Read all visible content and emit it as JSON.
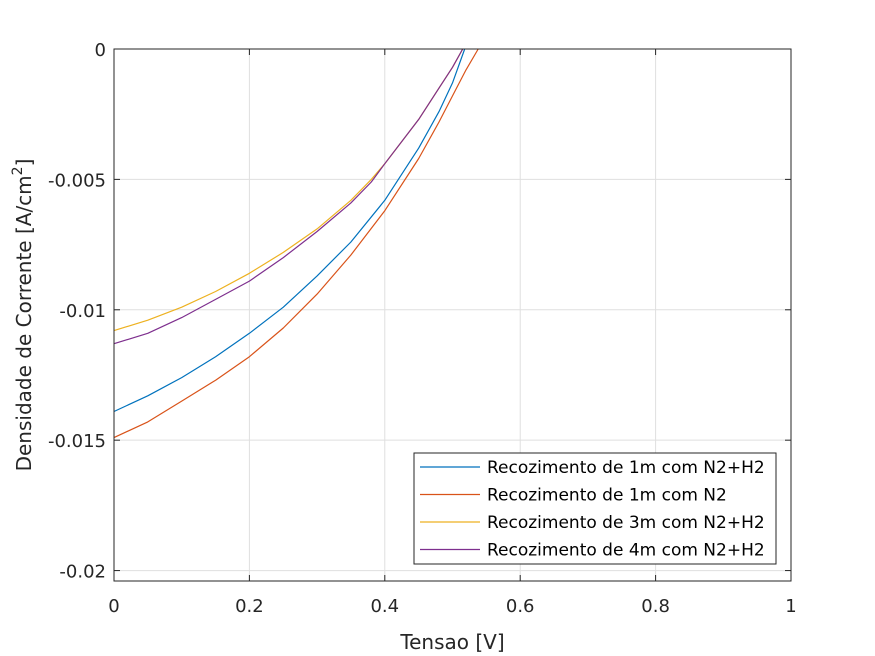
{
  "chart_data": {
    "type": "line",
    "title": "",
    "xlabel": "Tensao [V]",
    "ylabel_main": "Densidade de Corrente [A/cm",
    "ylabel_sup": "2",
    "ylabel_end": "]",
    "xlim": [
      0,
      1
    ],
    "ylim": [
      -0.0204,
      0
    ],
    "xticks": [
      0,
      0.2,
      0.4,
      0.6,
      0.8,
      1
    ],
    "xtick_labels": [
      "0",
      "0.2",
      "0.4",
      "0.6",
      "0.8",
      "1"
    ],
    "yticks": [
      0,
      -0.005,
      -0.01,
      -0.015,
      -0.02
    ],
    "ytick_labels": [
      "0",
      "-0.005",
      "-0.01",
      "-0.015",
      "-0.02"
    ],
    "grid": true,
    "legend_position": "bottom-right",
    "series": [
      {
        "name": "Recozimento de 1m com N2+H2",
        "color": "#0072BD",
        "x": [
          0,
          0.05,
          0.1,
          0.15,
          0.2,
          0.25,
          0.3,
          0.35,
          0.4,
          0.45,
          0.48,
          0.5,
          0.518
        ],
        "y": [
          -0.0139,
          -0.0133,
          -0.0126,
          -0.0118,
          -0.0109,
          -0.0099,
          -0.0087,
          -0.0074,
          -0.0058,
          -0.0038,
          -0.0024,
          -0.0013,
          0
        ]
      },
      {
        "name": "Recozimento de 1m com N2",
        "color": "#D95319",
        "x": [
          0,
          0.05,
          0.1,
          0.15,
          0.2,
          0.25,
          0.3,
          0.35,
          0.4,
          0.45,
          0.48,
          0.5,
          0.52,
          0.538
        ],
        "y": [
          -0.0149,
          -0.0143,
          -0.0135,
          -0.0127,
          -0.0118,
          -0.0107,
          -0.0094,
          -0.0079,
          -0.0062,
          -0.0042,
          -0.0028,
          -0.0018,
          -0.0008,
          0
        ]
      },
      {
        "name": "Recozimento de 3m com N2+H2",
        "color": "#EDB120",
        "x": [
          0,
          0.05,
          0.1,
          0.15,
          0.2,
          0.25,
          0.3,
          0.35,
          0.38,
          0.4,
          0.45,
          0.48,
          0.5,
          0.515
        ],
        "y": [
          -0.0108,
          -0.0104,
          -0.0099,
          -0.0093,
          -0.0086,
          -0.0078,
          -0.0069,
          -0.0058,
          -0.005,
          -0.0044,
          -0.0027,
          -0.0015,
          -0.0007,
          0
        ]
      },
      {
        "name": "Recozimento de 4m com N2+H2",
        "color": "#7E2F8E",
        "x": [
          0,
          0.05,
          0.1,
          0.15,
          0.2,
          0.25,
          0.3,
          0.35,
          0.38,
          0.4,
          0.45,
          0.48,
          0.5,
          0.515
        ],
        "y": [
          -0.0113,
          -0.0109,
          -0.0103,
          -0.0096,
          -0.0089,
          -0.008,
          -0.007,
          -0.0059,
          -0.0051,
          -0.0044,
          -0.0027,
          -0.0015,
          -0.0007,
          0
        ]
      }
    ]
  }
}
